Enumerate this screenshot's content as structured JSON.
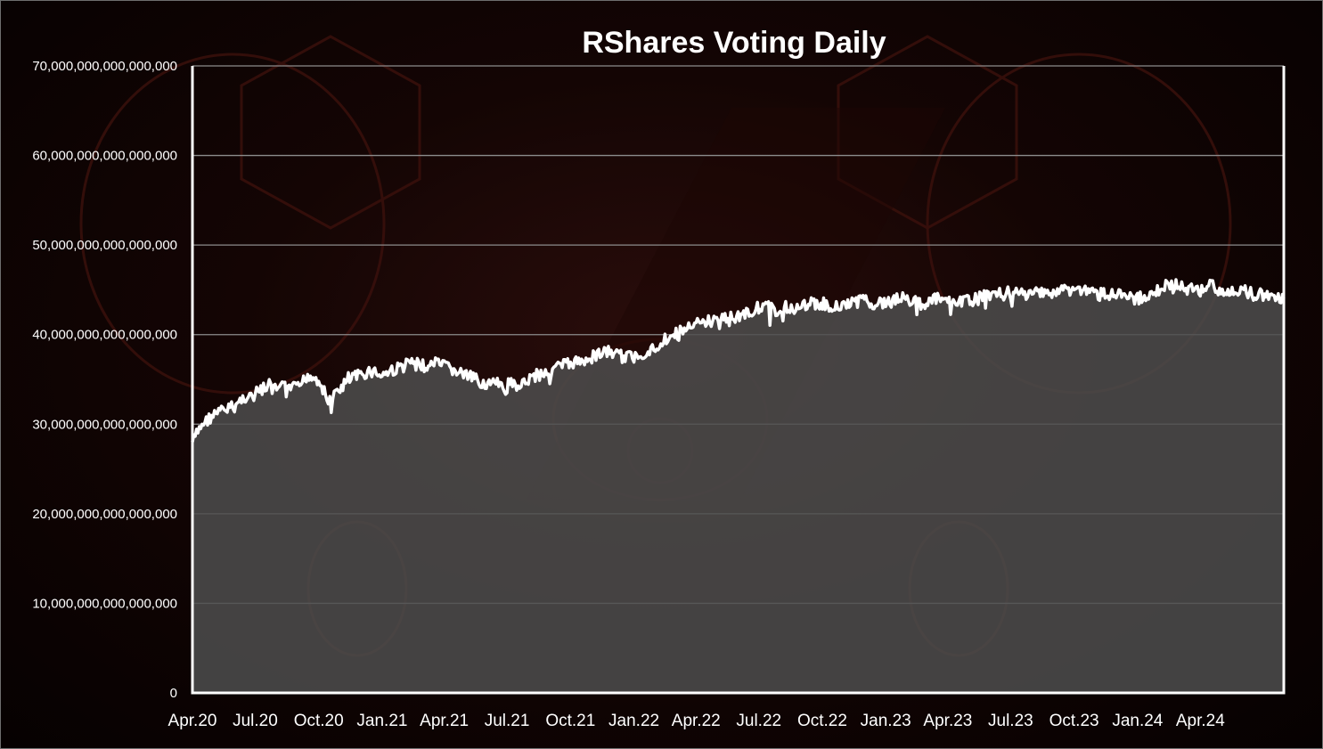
{
  "chart_data": {
    "type": "area",
    "title": "RShares Voting Daily",
    "xlabel": "",
    "ylabel": "",
    "ylim": [
      0,
      70000000000000000
    ],
    "y_ticks": [
      {
        "value": 0,
        "label": "0"
      },
      {
        "value": 10000000000000000,
        "label": "10,000,000,000,000,000"
      },
      {
        "value": 20000000000000000,
        "label": "20,000,000,000,000,000"
      },
      {
        "value": 30000000000000000,
        "label": "30,000,000,000,000,000"
      },
      {
        "value": 40000000000000000,
        "label": "40,000,000,000,000,000"
      },
      {
        "value": 50000000000000000,
        "label": "50,000,000,000,000,000"
      },
      {
        "value": 60000000000000000,
        "label": "60,000,000,000,000,000"
      },
      {
        "value": 70000000000000000,
        "label": "70,000,000,000,000,000"
      }
    ],
    "x_ticks": [
      "Apr.20",
      "Jul.20",
      "Oct.20",
      "Jan.21",
      "Apr.21",
      "Jul.21",
      "Oct.21",
      "Jan.22",
      "Apr.22",
      "Jul.22",
      "Oct.22",
      "Jan.23",
      "Apr.23",
      "Jul.23",
      "Oct.23",
      "Jan.24",
      "Apr.24"
    ],
    "x_range": [
      "2020-04-01",
      "2024-07-31"
    ],
    "grid": true,
    "legend": "none",
    "colors": {
      "line": "#ffffff",
      "area": "#4d4d4d",
      "grid": "#8c8c8c",
      "axis": "#ffffff"
    },
    "series": [
      {
        "x": [
          "2020-04-01",
          "2020-04-15",
          "2020-05-01",
          "2020-05-15",
          "2020-06-01",
          "2020-06-15",
          "2020-07-01",
          "2020-07-15",
          "2020-08-01",
          "2020-08-15",
          "2020-09-01",
          "2020-09-15",
          "2020-10-01",
          "2020-10-15",
          "2020-11-01",
          "2020-11-15",
          "2020-12-01",
          "2020-12-15",
          "2021-01-01",
          "2021-01-15",
          "2021-02-01",
          "2021-02-15",
          "2021-03-01",
          "2021-03-15",
          "2021-04-01",
          "2021-04-15",
          "2021-05-01",
          "2021-05-15",
          "2021-06-01",
          "2021-06-15",
          "2021-07-01",
          "2021-07-15",
          "2021-08-01",
          "2021-08-15",
          "2021-09-01",
          "2021-09-15",
          "2021-10-01",
          "2021-10-15",
          "2021-11-01",
          "2021-11-15",
          "2021-12-01",
          "2021-12-15",
          "2022-01-01",
          "2022-01-15",
          "2022-02-01",
          "2022-02-15",
          "2022-03-01",
          "2022-03-15",
          "2022-04-01",
          "2022-04-15",
          "2022-05-01",
          "2022-05-15",
          "2022-06-01",
          "2022-06-15",
          "2022-07-01",
          "2022-07-15",
          "2022-08-01",
          "2022-08-15",
          "2022-09-01",
          "2022-09-15",
          "2022-10-01",
          "2022-10-15",
          "2022-11-01",
          "2022-11-15",
          "2022-12-01",
          "2022-12-15",
          "2023-01-01",
          "2023-01-15",
          "2023-02-01",
          "2023-02-15",
          "2023-03-01",
          "2023-03-15",
          "2023-04-01",
          "2023-04-15",
          "2023-05-01",
          "2023-05-15",
          "2023-06-01",
          "2023-06-15",
          "2023-07-01",
          "2023-07-15",
          "2023-08-01",
          "2023-08-15",
          "2023-09-01",
          "2023-09-15",
          "2023-10-01",
          "2023-10-15",
          "2023-11-01",
          "2023-11-15",
          "2023-12-01",
          "2023-12-15",
          "2024-01-01",
          "2024-01-15",
          "2024-02-01",
          "2024-02-15",
          "2024-03-01",
          "2024-03-15",
          "2024-04-01",
          "2024-04-15",
          "2024-05-01",
          "2024-05-15",
          "2024-06-01",
          "2024-06-15",
          "2024-07-01",
          "2024-07-15",
          "2024-07-31"
        ],
        "values": [
          28000000000000000,
          30000000000000000,
          31000000000000000,
          31500000000000000,
          32000000000000000,
          33000000000000000,
          33500000000000000,
          34000000000000000,
          33800000000000000,
          34200000000000000,
          34000000000000000,
          35500000000000000,
          35000000000000000,
          32500000000000000,
          34000000000000000,
          35000000000000000,
          35500000000000000,
          36000000000000000,
          35500000000000000,
          36000000000000000,
          36500000000000000,
          37000000000000000,
          36500000000000000,
          36800000000000000,
          36500000000000000,
          36000000000000000,
          35500000000000000,
          35000000000000000,
          34500000000000000,
          34500000000000000,
          34000000000000000,
          34500000000000000,
          35000000000000000,
          35500000000000000,
          36000000000000000,
          36500000000000000,
          36800000000000000,
          37000000000000000,
          37500000000000000,
          38000000000000000,
          38000000000000000,
          37500000000000000,
          37500000000000000,
          38000000000000000,
          38500000000000000,
          39500000000000000,
          40000000000000000,
          40500000000000000,
          41000000000000000,
          41500000000000000,
          41500000000000000,
          42000000000000000,
          42000000000000000,
          42500000000000000,
          43000000000000000,
          43000000000000000,
          42500000000000000,
          43000000000000000,
          43000000000000000,
          43500000000000000,
          43500000000000000,
          43000000000000000,
          43500000000000000,
          43500000000000000,
          44000000000000000,
          43500000000000000,
          43500000000000000,
          44000000000000000,
          44000000000000000,
          43500000000000000,
          43500000000000000,
          44000000000000000,
          43500000000000000,
          43500000000000000,
          44000000000000000,
          44000000000000000,
          44500000000000000,
          44500000000000000,
          44500000000000000,
          44500000000000000,
          44500000000000000,
          45000000000000000,
          44500000000000000,
          45000000000000000,
          45000000000000000,
          45000000000000000,
          44500000000000000,
          44500000000000000,
          44500000000000000,
          44000000000000000,
          44000000000000000,
          44500000000000000,
          45000000000000000,
          45500000000000000,
          45500000000000000,
          45000000000000000,
          45000000000000000,
          45500000000000000,
          45000000000000000,
          45000000000000000,
          45000000000000000,
          44500000000000000,
          44500000000000000,
          44000000000000000,
          44000000000000000
        ]
      }
    ]
  }
}
